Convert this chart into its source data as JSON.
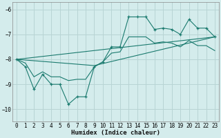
{
  "xlabel": "Humidex (Indice chaleur)",
  "bg_color": "#d4ecec",
  "grid_color": "#b8d4d4",
  "line_color": "#1a7a6e",
  "xlim": [
    -0.5,
    23.5
  ],
  "ylim": [
    -10.5,
    -5.7
  ],
  "yticks": [
    -10,
    -9,
    -8,
    -7,
    -6
  ],
  "xticks": [
    0,
    1,
    2,
    3,
    4,
    5,
    6,
    7,
    8,
    9,
    10,
    11,
    12,
    13,
    14,
    15,
    16,
    17,
    18,
    19,
    20,
    21,
    22,
    23
  ],
  "main_x": [
    0,
    1,
    2,
    3,
    4,
    5,
    6,
    7,
    8,
    9,
    10,
    11,
    12,
    13,
    14,
    15,
    16,
    17,
    18,
    19,
    20,
    21,
    22,
    23
  ],
  "main_y": [
    -8.0,
    -8.3,
    -9.2,
    -8.6,
    -9.0,
    -9.0,
    -9.8,
    -9.5,
    -9.5,
    -8.3,
    -8.1,
    -7.5,
    -7.5,
    -6.3,
    -6.3,
    -6.3,
    -6.8,
    -6.75,
    -6.8,
    -7.0,
    -6.4,
    -6.75,
    -6.75,
    -7.1
  ],
  "line2_x": [
    0,
    23
  ],
  "line2_y": [
    -8.0,
    -7.1
  ],
  "line3_x": [
    0,
    9,
    23
  ],
  "line3_y": [
    -8.0,
    -8.25,
    -7.1
  ],
  "smooth_x": [
    0,
    1,
    2,
    3,
    4,
    5,
    6,
    7,
    8,
    9,
    10,
    11,
    12,
    13,
    14,
    15,
    16,
    17,
    18,
    19,
    20,
    21,
    22,
    23
  ],
  "smooth_y": [
    -8.0,
    -8.15,
    -8.7,
    -8.5,
    -8.7,
    -8.7,
    -8.85,
    -8.8,
    -8.8,
    -8.3,
    -8.1,
    -7.75,
    -7.7,
    -7.1,
    -7.1,
    -7.1,
    -7.35,
    -7.3,
    -7.35,
    -7.5,
    -7.25,
    -7.45,
    -7.45,
    -7.65
  ]
}
